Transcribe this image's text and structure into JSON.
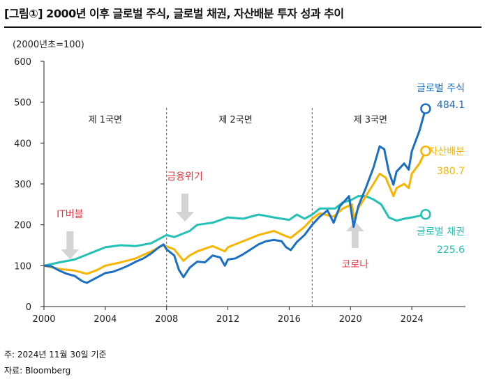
{
  "title": "[그림①] 2000년 이후 글로벌 주식, 글로벌 채권, 자산배분 투자 성과 추이",
  "notes": {
    "basis": "주: 2024년 11월 30일 기준",
    "source": "자료: Bloomberg"
  },
  "chart_data": {
    "type": "line",
    "title": "[그림①] 2000년 이후 글로벌 주식, 글로벌 채권, 자산배분 투자 성과 추이",
    "ylabel": "(2000년초=100)",
    "xlim": [
      2000,
      2027.5
    ],
    "ylim": [
      0,
      600
    ],
    "xticks": [
      2000,
      2004,
      2008,
      2012,
      2016,
      2020,
      2024
    ],
    "yticks": [
      0,
      100,
      200,
      300,
      400,
      500,
      600
    ],
    "grid": false,
    "phases": [
      {
        "label": "제 1국면",
        "at": 2004
      },
      {
        "label": "제 2국면",
        "at": 2012.5
      },
      {
        "label": "제 3국면",
        "at": 2021.3
      }
    ],
    "phase_boundaries": [
      2008,
      2017.5
    ],
    "annotations": [
      {
        "label": "IT버블",
        "x": 2001.7,
        "arrow": "down",
        "color": "#e8343c"
      },
      {
        "label": "금융위기",
        "x": 2009.2,
        "arrow": "down",
        "color": "#e8343c"
      },
      {
        "label": "코로나",
        "x": 2020.3,
        "arrow": "up",
        "color": "#e8343c"
      }
    ],
    "series": [
      {
        "name": "글로벌 주식",
        "end_label": "484.1",
        "color": "#1a6fc4",
        "x": [
          2000,
          2000.5,
          2001,
          2001.5,
          2002,
          2002.5,
          2002.8,
          2003,
          2003.5,
          2004,
          2004.5,
          2005,
          2005.5,
          2006,
          2006.5,
          2007,
          2007.5,
          2007.8,
          2008,
          2008.5,
          2008.8,
          2009.1,
          2009.5,
          2010,
          2010.5,
          2011,
          2011.5,
          2011.8,
          2012,
          2012.5,
          2013,
          2013.5,
          2014,
          2014.5,
          2015,
          2015.5,
          2015.8,
          2016.1,
          2016.5,
          2017,
          2017.5,
          2018,
          2018.5,
          2018.9,
          2019.3,
          2019.9,
          2020.2,
          2020.5,
          2021,
          2021.5,
          2021.9,
          2022.2,
          2022.5,
          2022.8,
          2023,
          2023.5,
          2023.8,
          2024,
          2024.5,
          2024.9
        ],
        "y": [
          100,
          98,
          88,
          80,
          75,
          62,
          58,
          62,
          72,
          82,
          85,
          92,
          100,
          110,
          118,
          130,
          145,
          152,
          140,
          125,
          90,
          72,
          95,
          110,
          108,
          125,
          120,
          100,
          115,
          118,
          128,
          140,
          152,
          160,
          163,
          160,
          145,
          138,
          158,
          175,
          200,
          220,
          235,
          205,
          245,
          270,
          195,
          245,
          290,
          340,
          392,
          385,
          330,
          298,
          330,
          350,
          335,
          380,
          430,
          484.1
        ]
      },
      {
        "name": "자산배분",
        "end_label": "380.7",
        "color": "#f7b500",
        "x": [
          2000,
          2001,
          2002,
          2002.8,
          2003.5,
          2004,
          2005,
          2006,
          2007,
          2007.8,
          2008.5,
          2009.1,
          2009.5,
          2010,
          2011,
          2011.8,
          2012,
          2013,
          2014,
          2015,
          2015.8,
          2016.1,
          2016.5,
          2017,
          2017.5,
          2018,
          2018.9,
          2019.5,
          2020.1,
          2020.2,
          2020.5,
          2021,
          2021.5,
          2021.9,
          2022.3,
          2022.8,
          2023,
          2023.5,
          2023.8,
          2024,
          2024.5,
          2024.9
        ],
        "y": [
          100,
          92,
          88,
          80,
          90,
          100,
          108,
          118,
          135,
          150,
          140,
          112,
          125,
          135,
          148,
          135,
          145,
          160,
          175,
          185,
          172,
          168,
          180,
          195,
          215,
          228,
          220,
          240,
          250,
          215,
          240,
          270,
          300,
          325,
          315,
          270,
          290,
          300,
          290,
          325,
          350,
          380.7
        ]
      },
      {
        "name": "글로벌 채권",
        "end_label": "225.6",
        "color": "#22c1b5",
        "x": [
          2000,
          2001,
          2002,
          2003,
          2004,
          2005,
          2006,
          2007,
          2008,
          2008.5,
          2009.5,
          2010,
          2011,
          2012,
          2013,
          2014,
          2015,
          2016,
          2016.5,
          2017,
          2017.5,
          2018,
          2019,
          2019.5,
          2020,
          2020.5,
          2021,
          2021.5,
          2022,
          2022.5,
          2023,
          2023.5,
          2024,
          2024.5,
          2024.9
        ],
        "y": [
          100,
          108,
          115,
          130,
          145,
          150,
          148,
          155,
          175,
          170,
          185,
          200,
          205,
          218,
          215,
          225,
          218,
          212,
          225,
          215,
          225,
          240,
          240,
          255,
          260,
          270,
          270,
          262,
          250,
          218,
          210,
          215,
          218,
          222,
          225.6
        ]
      }
    ]
  }
}
